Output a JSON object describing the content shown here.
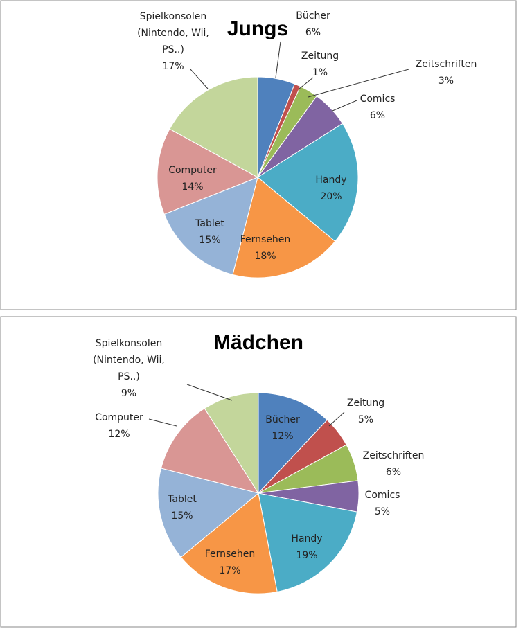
{
  "chart_data": [
    {
      "type": "pie",
      "title": "Jungs",
      "categories": [
        "Bücher",
        "Zeitung",
        "Zeitschriften",
        "Comics",
        "Handy",
        "Fernsehen",
        "Tablet",
        "Computer",
        "Spielkonsolen (Nintendo, Wii, PS..)"
      ],
      "values": [
        6,
        1,
        3,
        6,
        20,
        18,
        15,
        14,
        17
      ],
      "value_labels": [
        "6%",
        "1%",
        "3%",
        "6%",
        "20%",
        "18%",
        "15%",
        "14%",
        "17%"
      ],
      "colors": [
        "#4f81bd",
        "#c0504d",
        "#9bbb59",
        "#8064a2",
        "#4bacc6",
        "#f79646",
        "#95b3d7",
        "#d99694",
        "#c3d69b"
      ]
    },
    {
      "type": "pie",
      "title": "Mädchen",
      "categories": [
        "Bücher",
        "Zeitung",
        "Zeitschriften",
        "Comics",
        "Handy",
        "Fernsehen",
        "Tablet",
        "Computer",
        "Spielkonsolen (Nintendo, Wii, PS..)"
      ],
      "values": [
        12,
        5,
        6,
        5,
        19,
        17,
        15,
        12,
        9
      ],
      "value_labels": [
        "12%",
        "5%",
        "6%",
        "5%",
        "19%",
        "17%",
        "15%",
        "12%",
        "9%"
      ],
      "colors": [
        "#4f81bd",
        "#c0504d",
        "#9bbb59",
        "#8064a2",
        "#4bacc6",
        "#f79646",
        "#95b3d7",
        "#d99694",
        "#c3d69b"
      ]
    }
  ]
}
